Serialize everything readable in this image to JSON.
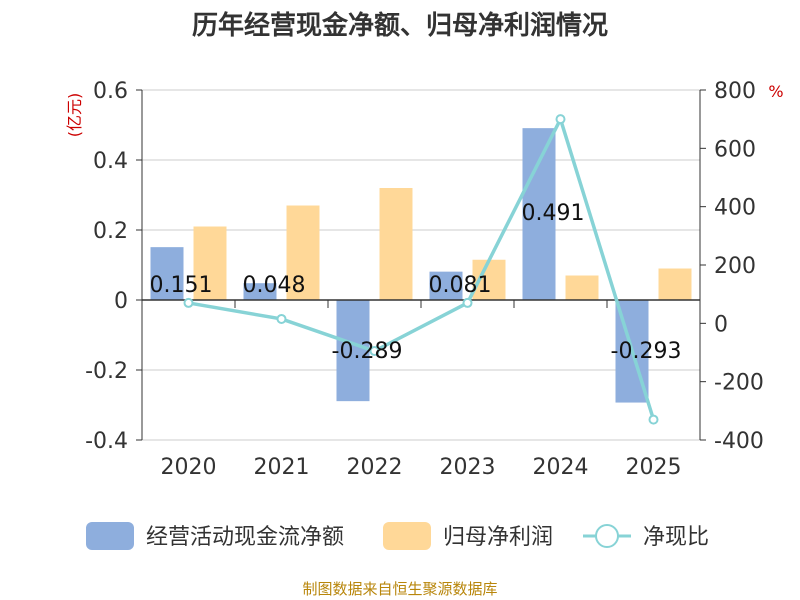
{
  "chart_data": {
    "type": "bar",
    "title": "历年经营现金净额、归母净利润情况",
    "categories": [
      "2020",
      "2021",
      "2022",
      "2023",
      "2024",
      "2025"
    ],
    "y_left": {
      "unit": "(亿元)",
      "range": [
        -0.4,
        0.6
      ],
      "ticks": [
        "0.6",
        "0.4",
        "0.2",
        "0",
        "-0.2",
        "-0.4"
      ],
      "tick_values": [
        0.6,
        0.4,
        0.2,
        0,
        -0.2,
        -0.4
      ]
    },
    "y_right": {
      "unit": "%",
      "range": [
        -400,
        800
      ],
      "ticks": [
        "800",
        "600",
        "400",
        "200",
        "0",
        "-200",
        "-400"
      ],
      "tick_values": [
        800,
        600,
        400,
        200,
        0,
        -200,
        -400
      ]
    },
    "series": [
      {
        "name": "经营活动现金流净额",
        "type": "bar",
        "axis": "left",
        "color": "#8eaedd",
        "values": [
          0.151,
          0.048,
          -0.289,
          0.081,
          0.491,
          -0.293
        ],
        "labels": [
          "0.151",
          "0.048",
          "-0.289",
          "0.081",
          "0.491",
          "-0.293"
        ]
      },
      {
        "name": "归母净利润",
        "type": "bar",
        "axis": "left",
        "color": "#ffd898",
        "values": [
          0.21,
          0.27,
          0.32,
          0.115,
          0.07,
          0.09
        ]
      },
      {
        "name": "净现比",
        "type": "line",
        "axis": "right",
        "color": "#87d3d6",
        "values": [
          70,
          15,
          -95,
          70,
          700,
          -330
        ]
      }
    ],
    "grid": true,
    "legend_position": "bottom"
  },
  "source": "制图数据来自恒生聚源数据库"
}
